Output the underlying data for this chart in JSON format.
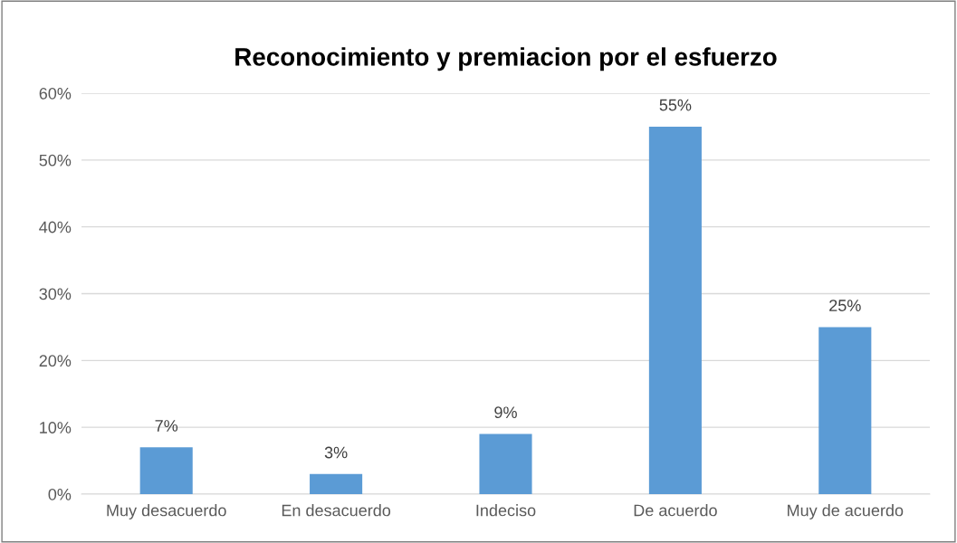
{
  "chart_data": {
    "type": "bar",
    "title": "Reconocimiento y premiacion por el esfuerzo",
    "categories": [
      "Muy desacuerdo",
      "En desacuerdo",
      "Indeciso",
      "De acuerdo",
      "Muy de acuerdo"
    ],
    "values": [
      7,
      3,
      9,
      55,
      25
    ],
    "color": "#5b9bd5",
    "value_labels": [
      "7%",
      "3%",
      "9%",
      "55%",
      "25%"
    ],
    "ylim": [
      0,
      60
    ],
    "yticks": [
      {
        "value": 0,
        "label": "0%"
      },
      {
        "value": 10,
        "label": "10%"
      },
      {
        "value": 20,
        "label": "20%"
      },
      {
        "value": 30,
        "label": "30%"
      },
      {
        "value": 40,
        "label": "40%"
      },
      {
        "value": 50,
        "label": "50%"
      },
      {
        "value": 60,
        "label": "60%"
      }
    ],
    "grid": "y",
    "legend": false
  }
}
